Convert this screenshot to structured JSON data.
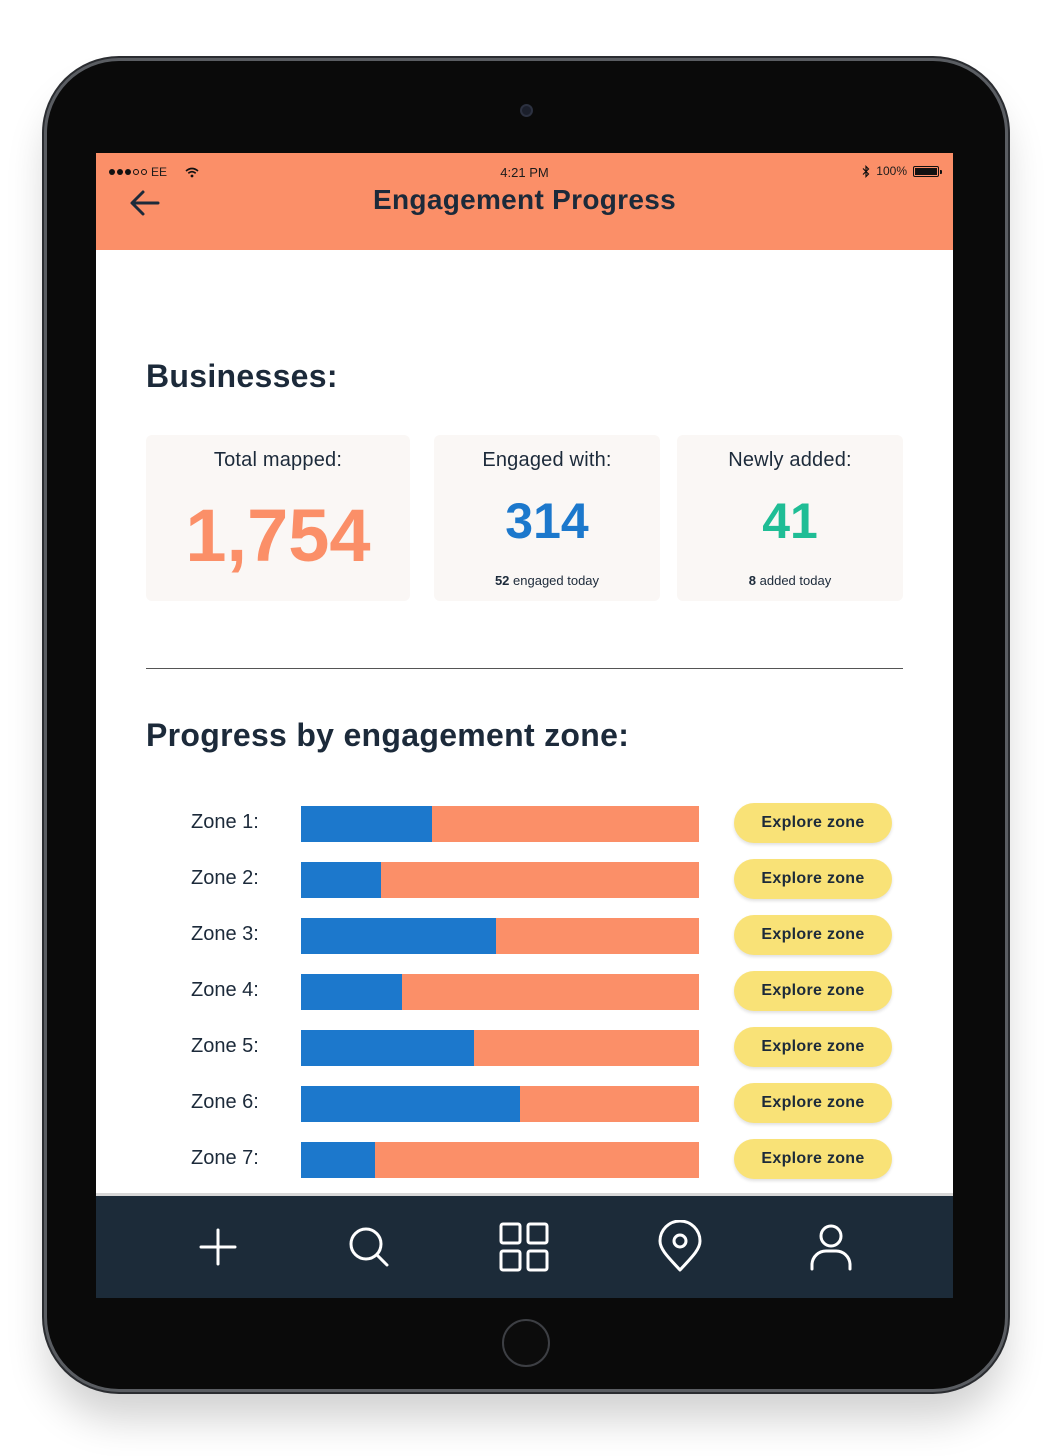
{
  "status_bar": {
    "carrier": "EE",
    "time": "4:21 PM",
    "battery_text": "100%",
    "icons": [
      "signal-dots-icon",
      "wifi-icon",
      "bluetooth-icon",
      "battery-icon"
    ]
  },
  "header": {
    "back_icon": "arrow-left-icon",
    "title": "Engagement Progress"
  },
  "businesses": {
    "section_title": "Businesses:",
    "cards": [
      {
        "label": "Total mapped:",
        "value": "1,754",
        "note_count": "",
        "note_text": ""
      },
      {
        "label": "Engaged with:",
        "value": "314",
        "note_count": "52",
        "note_text": " engaged today"
      },
      {
        "label": "Newly added:",
        "value": "41",
        "note_count": "8",
        "note_text": " added today"
      }
    ]
  },
  "zones": {
    "section_title": "Progress by engagement zone:",
    "button_label": "Explore zone",
    "items": [
      {
        "label": "Zone 1:",
        "progress": 0.33
      },
      {
        "label": "Zone 2:",
        "progress": 0.2
      },
      {
        "label": "Zone 3:",
        "progress": 0.49
      },
      {
        "label": "Zone 4:",
        "progress": 0.255
      },
      {
        "label": "Zone 5:",
        "progress": 0.435
      },
      {
        "label": "Zone 6:",
        "progress": 0.55
      },
      {
        "label": "Zone 7:",
        "progress": 0.185
      }
    ]
  },
  "colors": {
    "header_bg": "#fb8f68",
    "total_value": "#fb8f68",
    "engaged_value": "#1c78cc",
    "new_value": "#1fbd95",
    "bar_progress": "#1c78cc",
    "bar_remaining": "#fb8f68",
    "explore_button": "#f9e277",
    "tabbar_bg": "#1c2b39"
  },
  "tab_bar": {
    "items": [
      {
        "icon": "plus-icon"
      },
      {
        "icon": "search-icon"
      },
      {
        "icon": "grid-icon"
      },
      {
        "icon": "location-pin-icon"
      },
      {
        "icon": "user-icon"
      }
    ]
  }
}
